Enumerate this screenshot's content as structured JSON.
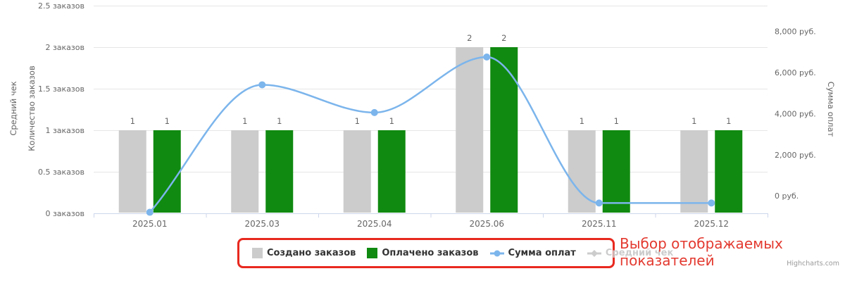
{
  "chart_data": {
    "type": "combo",
    "title": "",
    "categories": [
      "2025.01",
      "2025.03",
      "2025.04",
      "2025.06",
      "2025.11",
      "2025.12"
    ],
    "series": [
      {
        "name": "Создано заказов",
        "type": "column",
        "axis": "left",
        "color": "#cccccc",
        "values": [
          1,
          1,
          1,
          2,
          1,
          1
        ]
      },
      {
        "name": "Оплачено заказов",
        "type": "column",
        "axis": "left",
        "color": "#108a10",
        "values": [
          1,
          1,
          1,
          2,
          1,
          1
        ]
      },
      {
        "name": "Сумма оплат",
        "type": "spline",
        "axis": "right",
        "color": "#7cb5ec",
        "values": [
          -800,
          5400,
          4050,
          6750,
          -350,
          -350
        ]
      },
      {
        "name": "Средний чек",
        "type": "spline",
        "axis": "right",
        "color": "#cccccc",
        "visible": false,
        "values": []
      }
    ],
    "y_axis_left": {
      "titles": [
        "Средний чек",
        "Количество заказов"
      ],
      "tick_values": [
        0,
        0.5,
        1,
        1.5,
        2,
        2.5
      ],
      "tick_labels": [
        "0 заказов",
        "0.5 заказов",
        "1 заказов",
        "1.5 заказов",
        "2 заказов",
        "2.5 заказов"
      ],
      "min": 0,
      "max": 2.5
    },
    "y_axis_right": {
      "title": "Сумма оплат",
      "tick_values": [
        0,
        2000,
        4000,
        6000,
        8000
      ],
      "tick_labels": [
        "0 руб.",
        "2,000 руб.",
        "4,000 руб.",
        "6,000 руб.",
        "8,000 руб."
      ],
      "min": -850,
      "max": 9250
    },
    "grid": "horizontal",
    "legend_position": "bottom",
    "colors": {
      "gridline": "#e6e6e6",
      "axis_line": "#ccd6eb",
      "tick_label": "#666666",
      "data_label": "#666666"
    }
  },
  "legend": {
    "box_color": "#e8291f",
    "items": [
      {
        "label": "Создано заказов",
        "type": "square",
        "color": "#cccccc",
        "enabled": true
      },
      {
        "label": "Оплачено заказов",
        "type": "square",
        "color": "#108a10",
        "enabled": true
      },
      {
        "label": "Сумма оплат",
        "type": "line-circle",
        "color": "#7cb5ec",
        "enabled": true
      },
      {
        "label": "Средний чек",
        "type": "line-diamond",
        "color": "#cccccc",
        "enabled": false
      }
    ]
  },
  "annotation": {
    "text": "Выбор отображаемых показателей",
    "color": "#e33a30"
  },
  "credits": "Highcharts.com"
}
